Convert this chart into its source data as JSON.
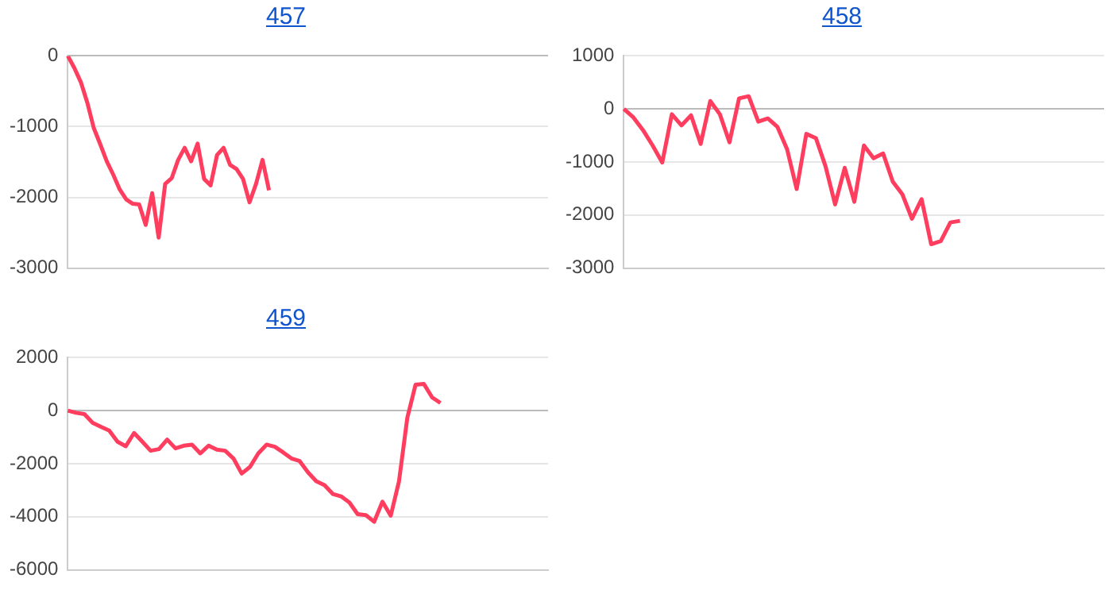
{
  "chart_data": [
    {
      "type": "line",
      "title": "457",
      "categories": [
        null,
        null,
        null,
        null,
        null,
        null,
        null,
        null,
        null,
        null,
        null,
        null,
        null,
        null,
        null,
        null,
        null,
        null,
        null,
        null,
        null,
        null,
        null,
        null,
        null,
        null,
        null,
        null,
        null,
        null,
        null,
        null,
        null,
        null,
        null,
        null,
        null,
        null,
        null,
        null,
        null,
        null,
        null,
        null,
        null,
        null,
        null,
        null,
        null,
        null,
        null,
        null,
        null,
        null,
        null,
        null,
        null,
        null,
        null,
        null,
        null,
        null,
        null,
        null,
        null,
        null,
        null,
        null,
        null,
        null,
        null,
        null,
        null,
        null,
        null
      ],
      "series": [
        {
          "color": "#ff3d5f",
          "values": [
            0,
            -170,
            -370,
            -660,
            -1020,
            -1250,
            -1490,
            -1680,
            -1890,
            -2030,
            -2090,
            -2100,
            -2390,
            -1940,
            -2570,
            -1810,
            -1730,
            -1470,
            -1300,
            -1490,
            -1240,
            -1740,
            -1830,
            -1400,
            -1300,
            -1540,
            -1600,
            -1740,
            -2070,
            -1810,
            -1470,
            -1900,
            null,
            null,
            null,
            null,
            null,
            null,
            null,
            null,
            null,
            null,
            null,
            null,
            null,
            null,
            null,
            null,
            null,
            null,
            null,
            null,
            null,
            null,
            null,
            null,
            null,
            null,
            null,
            null,
            null,
            null,
            null,
            null,
            null,
            null,
            null,
            null,
            null,
            null,
            null,
            null,
            null,
            null,
            null
          ]
        }
      ],
      "ylim": [
        -3000,
        0
      ],
      "yticks": [
        -3000,
        -2000,
        -1000,
        0
      ],
      "grid": "y",
      "tick_labels": "y",
      "marker": "none",
      "line_style": "solid",
      "legend": false
    },
    {
      "type": "line",
      "title": "458",
      "categories": [
        null,
        null,
        null,
        null,
        null,
        null,
        null,
        null,
        null,
        null,
        null,
        null,
        null,
        null,
        null,
        null,
        null,
        null,
        null,
        null,
        null,
        null,
        null,
        null,
        null,
        null,
        null,
        null,
        null,
        null,
        null,
        null,
        null,
        null,
        null,
        null,
        null,
        null,
        null,
        null,
        null,
        null,
        null,
        null,
        null,
        null,
        null,
        null,
        null,
        null,
        null
      ],
      "series": [
        {
          "color": "#ff3d5f",
          "values": [
            0,
            -160,
            -400,
            -690,
            -1010,
            -100,
            -310,
            -120,
            -660,
            150,
            -100,
            -630,
            200,
            240,
            -240,
            -180,
            -340,
            -760,
            -1510,
            -470,
            -550,
            -1080,
            -1800,
            -1110,
            -1750,
            -690,
            -930,
            -840,
            -1370,
            -1610,
            -2070,
            -1700,
            -2550,
            -2490,
            -2140,
            -2110,
            null,
            null,
            null,
            null,
            null,
            null,
            null,
            null,
            null,
            null,
            null,
            null,
            null,
            null,
            null
          ]
        }
      ],
      "ylim": [
        -3000,
        1000
      ],
      "yticks": [
        -3000,
        -2000,
        -1000,
        0,
        1000
      ],
      "grid": "y",
      "tick_labels": "y",
      "marker": "none",
      "line_style": "solid",
      "legend": false
    },
    {
      "type": "line",
      "title": "459",
      "categories": [
        null,
        null,
        null,
        null,
        null,
        null,
        null,
        null,
        null,
        null,
        null,
        null,
        null,
        null,
        null,
        null,
        null,
        null,
        null,
        null,
        null,
        null,
        null,
        null,
        null,
        null,
        null,
        null,
        null,
        null,
        null,
        null,
        null,
        null,
        null,
        null,
        null,
        null,
        null,
        null,
        null,
        null,
        null,
        null,
        null,
        null,
        null,
        null,
        null,
        null,
        null,
        null,
        null,
        null,
        null,
        null,
        null,
        null,
        null
      ],
      "series": [
        {
          "color": "#ff3d5f",
          "values": [
            0,
            -80,
            -130,
            -460,
            -610,
            -750,
            -1170,
            -1340,
            -840,
            -1170,
            -1510,
            -1450,
            -1090,
            -1420,
            -1320,
            -1280,
            -1610,
            -1320,
            -1470,
            -1510,
            -1800,
            -2370,
            -2120,
            -1610,
            -1280,
            -1360,
            -1570,
            -1800,
            -1900,
            -2320,
            -2660,
            -2810,
            -3140,
            -3230,
            -3460,
            -3900,
            -3940,
            -4190,
            -3430,
            -3960,
            -2660,
            -270,
            980,
            1010,
            500,
            290,
            null,
            null,
            null,
            null,
            null,
            null,
            null,
            null,
            null,
            null,
            null,
            null,
            null
          ]
        }
      ],
      "ylim": [
        -6000,
        2000
      ],
      "yticks": [
        -6000,
        -4000,
        -2000,
        0,
        2000
      ],
      "grid": "y",
      "tick_labels": "y",
      "marker": "none",
      "line_style": "solid",
      "legend": false
    }
  ]
}
